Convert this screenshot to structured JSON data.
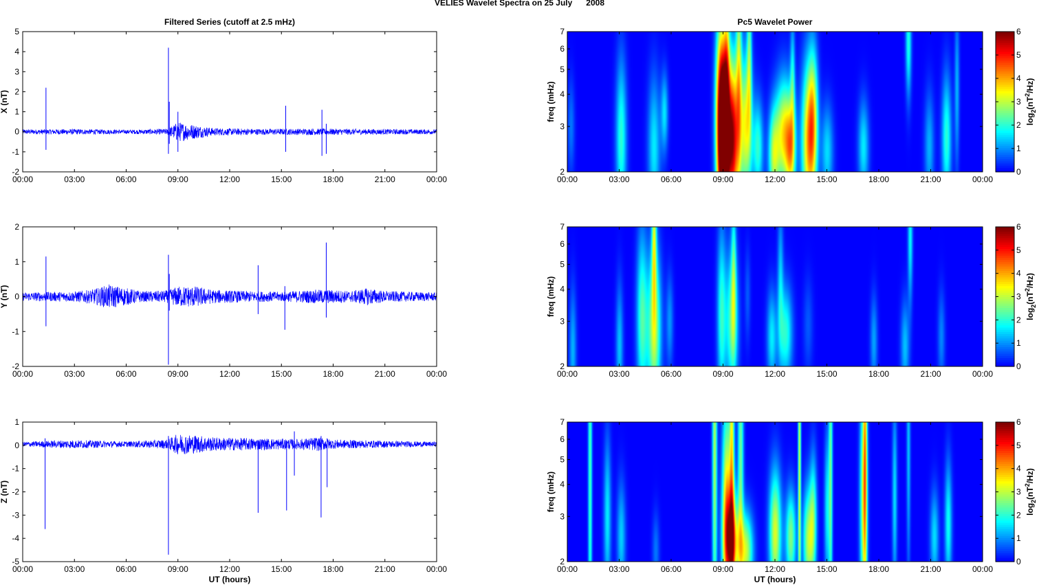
{
  "figure": {
    "title": "VELIES Wavelet Spectra on 25 July      2008"
  },
  "colors": {
    "trace": "#0000ff",
    "axes": "#000000"
  },
  "chart_data": [
    {
      "type": "line",
      "panel": "X",
      "title": "Filtered Series (cutoff at 2.5 mHz)",
      "xlabel": "",
      "ylabel": "X (nT)",
      "xlim": [
        0,
        24
      ],
      "ylim": [
        -2,
        5
      ],
      "xticks": [
        "00:00",
        "03:00",
        "06:00",
        "09:00",
        "12:00",
        "15:00",
        "18:00",
        "21:00",
        "00:00"
      ],
      "yticks": [
        -2,
        -1,
        0,
        1,
        2,
        3,
        4,
        5
      ],
      "baseline": 0,
      "noise_envelope": [
        [
          0,
          0.12
        ],
        [
          3,
          0.14
        ],
        [
          6,
          0.1
        ],
        [
          8.4,
          0.15
        ],
        [
          9,
          0.5
        ],
        [
          10,
          0.35
        ],
        [
          11,
          0.2
        ],
        [
          12,
          0.17
        ],
        [
          14,
          0.15
        ],
        [
          17,
          0.16
        ],
        [
          19,
          0.15
        ],
        [
          20,
          0.14
        ],
        [
          24,
          0.12
        ]
      ],
      "spikes": [
        [
          1.35,
          2.2,
          -0.9
        ],
        [
          8.45,
          4.2,
          -1.1
        ],
        [
          8.5,
          1.5,
          -0.6
        ],
        [
          9.0,
          1.0,
          -1.0
        ],
        [
          15.25,
          1.3,
          -1.0
        ],
        [
          17.35,
          1.1,
          -1.2
        ],
        [
          17.6,
          0.4,
          -1.1
        ]
      ]
    },
    {
      "type": "line",
      "panel": "Y",
      "title": "",
      "xlabel": "",
      "ylabel": "Y (nT)",
      "xlim": [
        0,
        24
      ],
      "ylim": [
        -2,
        2
      ],
      "xticks": [
        "00:00",
        "03:00",
        "06:00",
        "09:00",
        "12:00",
        "15:00",
        "18:00",
        "21:00",
        "00:00"
      ],
      "yticks": [
        -2,
        -1,
        0,
        1,
        2
      ],
      "baseline": 0,
      "noise_envelope": [
        [
          0,
          0.12
        ],
        [
          3,
          0.15
        ],
        [
          4,
          0.2
        ],
        [
          5,
          0.35
        ],
        [
          6,
          0.25
        ],
        [
          7,
          0.15
        ],
        [
          8.4,
          0.18
        ],
        [
          9,
          0.3
        ],
        [
          10,
          0.3
        ],
        [
          11,
          0.2
        ],
        [
          13,
          0.16
        ],
        [
          15,
          0.14
        ],
        [
          17,
          0.2
        ],
        [
          18,
          0.2
        ],
        [
          19,
          0.16
        ],
        [
          20,
          0.25
        ],
        [
          21,
          0.16
        ],
        [
          24,
          0.12
        ]
      ],
      "spikes": [
        [
          1.35,
          1.15,
          -0.85
        ],
        [
          8.45,
          1.2,
          -1.95
        ],
        [
          8.5,
          0.65,
          -0.4
        ],
        [
          13.65,
          0.9,
          -0.5
        ],
        [
          15.2,
          0.3,
          -0.95
        ],
        [
          17.6,
          1.55,
          -0.6
        ]
      ]
    },
    {
      "type": "line",
      "panel": "Z",
      "title": "",
      "xlabel": "UT (hours)",
      "ylabel": "Z (nT)",
      "xlim": [
        0,
        24
      ],
      "ylim": [
        -5,
        1
      ],
      "xticks": [
        "00:00",
        "03:00",
        "06:00",
        "09:00",
        "12:00",
        "15:00",
        "18:00",
        "21:00",
        "00:00"
      ],
      "yticks": [
        -5,
        -4,
        -3,
        -2,
        -1,
        0,
        1
      ],
      "baseline": 0.05,
      "noise_envelope": [
        [
          0,
          0.1
        ],
        [
          2.5,
          0.18
        ],
        [
          3,
          0.18
        ],
        [
          6,
          0.12
        ],
        [
          8.4,
          0.2
        ],
        [
          9,
          0.45
        ],
        [
          10,
          0.4
        ],
        [
          11,
          0.3
        ],
        [
          12,
          0.28
        ],
        [
          14,
          0.25
        ],
        [
          16,
          0.22
        ],
        [
          17,
          0.3
        ],
        [
          18,
          0.2
        ],
        [
          21,
          0.15
        ],
        [
          24,
          0.1
        ]
      ],
      "spikes": [
        [
          1.3,
          0.3,
          -3.6
        ],
        [
          8.45,
          0.4,
          -4.7
        ],
        [
          13.65,
          0.2,
          -2.9
        ],
        [
          15.3,
          0.2,
          -2.8
        ],
        [
          15.75,
          0.6,
          -1.3
        ],
        [
          17.3,
          0.4,
          -3.1
        ],
        [
          17.65,
          0.3,
          -1.8
        ]
      ]
    },
    {
      "type": "heatmap",
      "panel": "X",
      "title": "Pc5 Wavelet Power",
      "xlabel": "",
      "ylabel": "freq (mHz)",
      "colorbar_label": "log2(nT^2/Hz)",
      "xlim": [
        0,
        24
      ],
      "ylim": [
        2,
        7
      ],
      "yscale": "log",
      "yticks": [
        2,
        3,
        4,
        5,
        6,
        7
      ],
      "clim": [
        0,
        6
      ],
      "xticks": [
        "00:00",
        "03:00",
        "06:00",
        "09:00",
        "12:00",
        "15:00",
        "18:00",
        "21:00",
        "00:00"
      ],
      "cbar_ticks": [
        0,
        1,
        2,
        3,
        4,
        5,
        6
      ],
      "colormap": "jet",
      "blobs": [
        [
          3.1,
          2.7,
          0.22,
          0.5,
          2.0
        ],
        [
          5.0,
          2.5,
          0.25,
          0.45,
          1.6
        ],
        [
          5.6,
          3.4,
          0.15,
          0.25,
          1.5
        ],
        [
          8.8,
          3.2,
          0.2,
          0.6,
          4.5
        ],
        [
          9.0,
          2.6,
          0.18,
          0.6,
          5.5
        ],
        [
          9.5,
          2.7,
          0.28,
          0.5,
          6.0
        ],
        [
          9.2,
          4.5,
          0.12,
          0.6,
          2.6
        ],
        [
          9.9,
          5.3,
          0.12,
          0.7,
          2.3
        ],
        [
          10.3,
          3.0,
          0.25,
          0.45,
          3.3
        ],
        [
          10.5,
          5.8,
          0.1,
          0.5,
          2.0
        ],
        [
          11.0,
          2.5,
          0.22,
          0.3,
          2.0
        ],
        [
          11.9,
          2.3,
          0.22,
          0.3,
          2.5
        ],
        [
          12.5,
          2.8,
          0.35,
          0.35,
          3.5
        ],
        [
          12.9,
          2.4,
          0.2,
          0.3,
          2.6
        ],
        [
          13.0,
          4.5,
          0.1,
          0.4,
          1.6
        ],
        [
          13.9,
          2.6,
          0.28,
          0.5,
          3.6
        ],
        [
          14.2,
          3.2,
          0.2,
          0.45,
          2.6
        ],
        [
          15.0,
          2.4,
          0.25,
          0.3,
          1.5
        ],
        [
          17.1,
          2.5,
          0.22,
          0.3,
          1.6
        ],
        [
          19.7,
          6.4,
          0.12,
          0.35,
          1.9
        ],
        [
          20.9,
          2.5,
          0.2,
          0.35,
          1.2
        ],
        [
          21.9,
          2.7,
          0.2,
          0.4,
          2.0
        ],
        [
          22.5,
          4.2,
          0.1,
          0.5,
          1.2
        ],
        [
          0.2,
          3.0,
          0.15,
          0.3,
          0.8
        ]
      ]
    },
    {
      "type": "heatmap",
      "panel": "Y",
      "title": "",
      "xlabel": "",
      "ylabel": "freq (mHz)",
      "colorbar_label": "log2(nT^2/Hz)",
      "xlim": [
        0,
        24
      ],
      "ylim": [
        2,
        7
      ],
      "yscale": "log",
      "yticks": [
        2,
        3,
        4,
        5,
        6,
        7
      ],
      "clim": [
        0,
        6
      ],
      "xticks": [
        "00:00",
        "03:00",
        "06:00",
        "09:00",
        "12:00",
        "15:00",
        "18:00",
        "21:00",
        "00:00"
      ],
      "cbar_ticks": [
        0,
        1,
        2,
        3,
        4,
        5,
        6
      ],
      "colormap": "jet",
      "blobs": [
        [
          0.3,
          2.3,
          0.15,
          0.4,
          1.2
        ],
        [
          3.0,
          2.4,
          0.15,
          0.4,
          1.3
        ],
        [
          4.3,
          3.1,
          0.22,
          0.55,
          2.2
        ],
        [
          5.0,
          2.8,
          0.28,
          0.5,
          3.0
        ],
        [
          5.0,
          6.5,
          0.1,
          0.45,
          2.6
        ],
        [
          5.9,
          3.0,
          0.15,
          0.3,
          1.0
        ],
        [
          8.9,
          3.2,
          0.18,
          0.55,
          2.0
        ],
        [
          9.5,
          3.0,
          0.25,
          0.45,
          2.4
        ],
        [
          9.6,
          4.8,
          0.1,
          0.5,
          1.6
        ],
        [
          11.8,
          2.6,
          0.2,
          0.3,
          1.6
        ],
        [
          12.6,
          2.7,
          0.28,
          0.3,
          2.0
        ],
        [
          12.3,
          4.4,
          0.12,
          0.45,
          1.3
        ],
        [
          17.7,
          2.5,
          0.15,
          0.3,
          1.1
        ],
        [
          19.5,
          2.4,
          0.18,
          0.3,
          1.3
        ],
        [
          19.8,
          6.4,
          0.1,
          0.4,
          1.7
        ],
        [
          21.6,
          2.6,
          0.15,
          0.3,
          0.9
        ],
        [
          13.9,
          2.9,
          0.2,
          0.3,
          0.6
        ],
        [
          10.4,
          3.8,
          0.12,
          0.3,
          0.6
        ]
      ]
    },
    {
      "type": "heatmap",
      "panel": "Z",
      "title": "",
      "xlabel": "UT (hours)",
      "ylabel": "freq (mHz)",
      "colorbar_label": "log2(nT^2/Hz)",
      "xlim": [
        0,
        24
      ],
      "ylim": [
        2,
        7
      ],
      "yscale": "log",
      "yticks": [
        2,
        3,
        4,
        5,
        6,
        7
      ],
      "clim": [
        0,
        6
      ],
      "xticks": [
        "00:00",
        "03:00",
        "06:00",
        "09:00",
        "12:00",
        "15:00",
        "18:00",
        "21:00",
        "00:00"
      ],
      "cbar_ticks": [
        0,
        1,
        2,
        3,
        4,
        5,
        6
      ],
      "colormap": "jet",
      "blobs": [
        [
          1.3,
          5.0,
          0.08,
          1.6,
          2.2
        ],
        [
          2.3,
          3.0,
          0.15,
          0.5,
          1.6
        ],
        [
          3.1,
          2.5,
          0.18,
          0.35,
          1.4
        ],
        [
          5.1,
          2.2,
          0.15,
          0.25,
          0.8
        ],
        [
          8.5,
          5.5,
          0.1,
          1.3,
          2.8
        ],
        [
          9.2,
          3.2,
          0.2,
          0.7,
          3.6
        ],
        [
          9.5,
          2.4,
          0.3,
          0.3,
          4.0
        ],
        [
          9.5,
          5.0,
          0.1,
          1.0,
          2.8
        ],
        [
          10.0,
          5.5,
          0.12,
          0.8,
          2.4
        ],
        [
          10.3,
          2.2,
          0.3,
          0.25,
          3.0
        ],
        [
          12.0,
          2.6,
          0.25,
          0.4,
          3.2
        ],
        [
          12.9,
          2.5,
          0.22,
          0.3,
          2.6
        ],
        [
          13.4,
          5.5,
          0.06,
          1.5,
          3.0
        ],
        [
          13.9,
          2.4,
          0.22,
          0.35,
          2.8
        ],
        [
          14.2,
          3.0,
          0.15,
          0.4,
          2.0
        ],
        [
          15.0,
          3.2,
          0.12,
          0.5,
          1.6
        ],
        [
          15.2,
          5.2,
          0.08,
          1.3,
          2.2
        ],
        [
          17.1,
          3.5,
          0.15,
          0.8,
          3.0
        ],
        [
          17.2,
          5.5,
          0.08,
          1.0,
          2.4
        ],
        [
          18.9,
          3.6,
          0.1,
          0.6,
          1.5
        ],
        [
          19.7,
          5.6,
          0.08,
          0.8,
          1.3
        ],
        [
          21.2,
          2.5,
          0.18,
          0.3,
          1.5
        ],
        [
          22.0,
          2.8,
          0.15,
          0.4,
          1.8
        ]
      ]
    }
  ]
}
